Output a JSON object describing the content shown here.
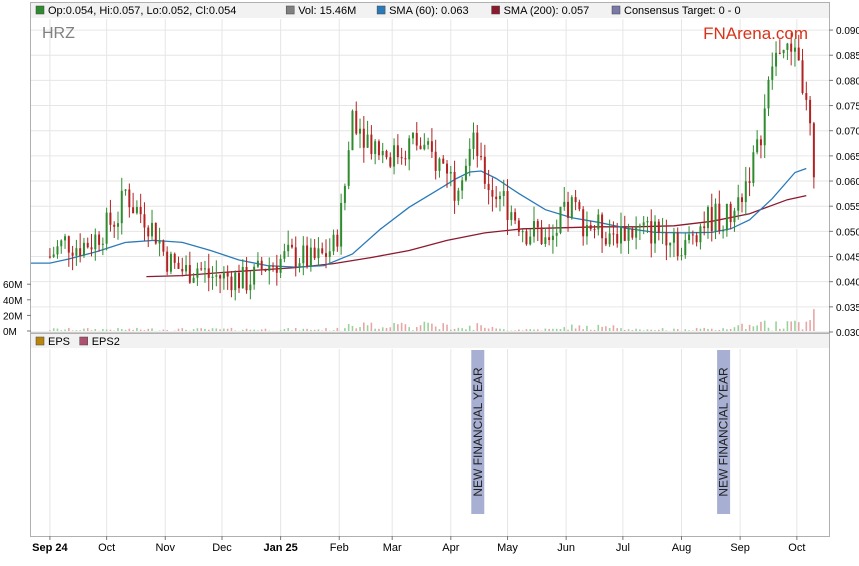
{
  "ticker": "HRZ",
  "brand": "FNArena.com",
  "legend_top": [
    {
      "label": "Op:0.054, Hi:0.057, Lo:0.052, Cl:0.054",
      "color": "#2e8b2e"
    },
    {
      "label": "Vol: 15.46M",
      "color": "#808080"
    },
    {
      "label": "SMA (60): 0.063",
      "color": "#2a7ab8"
    },
    {
      "label": "SMA (200): 0.057",
      "color": "#8b1a2e"
    },
    {
      "label": "Consensus Target: 0 - 0",
      "color": "#7a7aa8"
    }
  ],
  "legend_bottom": [
    {
      "label": "EPS",
      "color": "#b8860b"
    },
    {
      "label": "EPS2",
      "color": "#b05070"
    }
  ],
  "annotations": [
    "NEW FINANCIAL YEAR",
    "NEW FINANCIAL YEAR"
  ],
  "chart_data": {
    "type": "candlestick",
    "price_axis": {
      "ticks": [
        "0.090",
        "0.085",
        "0.080",
        "0.075",
        "0.070",
        "0.065",
        "0.060",
        "0.055",
        "0.050",
        "0.045",
        "0.040",
        "0.035",
        "0.030"
      ],
      "min": 0.03,
      "max": 0.092
    },
    "volume_axis": {
      "ticks": [
        "60M",
        "40M",
        "20M",
        "0M"
      ],
      "max": 75
    },
    "x_axis": {
      "labels": [
        "Sep 24",
        "Oct",
        "Nov",
        "Dec",
        "Jan 25",
        "Feb",
        "Mar",
        "Apr",
        "May",
        "Jun",
        "Jul",
        "Aug",
        "Sep",
        "Oct"
      ],
      "bold": [
        "Sep 24",
        "Jan 25"
      ],
      "min_day": -10,
      "max_day": 412,
      "label_days": [
        0,
        30,
        61,
        91,
        122,
        153,
        181,
        212,
        242,
        273,
        303,
        334,
        365,
        395
      ],
      "annotation_days": [
        226,
        356
      ]
    },
    "price_anchors": [
      [
        0,
        0.045
      ],
      [
        8,
        0.048
      ],
      [
        15,
        0.047
      ],
      [
        22,
        0.048
      ],
      [
        30,
        0.051
      ],
      [
        36,
        0.053
      ],
      [
        40,
        0.058
      ],
      [
        44,
        0.055
      ],
      [
        50,
        0.053
      ],
      [
        57,
        0.049
      ],
      [
        61,
        0.045
      ],
      [
        66,
        0.043
      ],
      [
        72,
        0.042
      ],
      [
        78,
        0.043
      ],
      [
        84,
        0.041
      ],
      [
        91,
        0.041
      ],
      [
        97,
        0.041
      ],
      [
        103,
        0.04
      ],
      [
        108,
        0.041
      ],
      [
        113,
        0.043
      ],
      [
        120,
        0.044
      ],
      [
        126,
        0.045
      ],
      [
        132,
        0.045
      ],
      [
        138,
        0.044
      ],
      [
        144,
        0.045
      ],
      [
        150,
        0.047
      ],
      [
        153,
        0.051
      ],
      [
        157,
        0.062
      ],
      [
        160,
        0.074
      ],
      [
        165,
        0.07
      ],
      [
        170,
        0.068
      ],
      [
        176,
        0.066
      ],
      [
        181,
        0.065
      ],
      [
        186,
        0.066
      ],
      [
        192,
        0.068
      ],
      [
        198,
        0.066
      ],
      [
        204,
        0.064
      ],
      [
        210,
        0.063
      ],
      [
        214,
        0.059
      ],
      [
        218,
        0.063
      ],
      [
        222,
        0.066
      ],
      [
        225,
        0.068
      ],
      [
        228,
        0.062
      ],
      [
        234,
        0.058
      ],
      [
        240,
        0.056
      ],
      [
        246,
        0.053
      ],
      [
        252,
        0.05
      ],
      [
        258,
        0.05
      ],
      [
        264,
        0.047
      ],
      [
        270,
        0.052
      ],
      [
        276,
        0.055
      ],
      [
        282,
        0.052
      ],
      [
        288,
        0.051
      ],
      [
        294,
        0.05
      ],
      [
        300,
        0.05
      ],
      [
        306,
        0.05
      ],
      [
        312,
        0.05
      ],
      [
        318,
        0.05
      ],
      [
        324,
        0.05
      ],
      [
        330,
        0.05
      ],
      [
        334,
        0.045
      ],
      [
        340,
        0.05
      ],
      [
        346,
        0.052
      ],
      [
        352,
        0.053
      ],
      [
        356,
        0.052
      ],
      [
        362,
        0.054
      ],
      [
        368,
        0.06
      ],
      [
        374,
        0.066
      ],
      [
        378,
        0.074
      ],
      [
        382,
        0.083
      ],
      [
        386,
        0.087
      ],
      [
        390,
        0.085
      ],
      [
        394,
        0.088
      ],
      [
        398,
        0.079
      ],
      [
        402,
        0.07
      ],
      [
        405,
        0.052
      ]
    ],
    "sma60": [
      [
        -10,
        0.0437
      ],
      [
        0,
        0.0437
      ],
      [
        10,
        0.0445
      ],
      [
        25,
        0.046
      ],
      [
        40,
        0.0478
      ],
      [
        55,
        0.0482
      ],
      [
        70,
        0.0478
      ],
      [
        85,
        0.0462
      ],
      [
        100,
        0.0443
      ],
      [
        115,
        0.0432
      ],
      [
        130,
        0.0429
      ],
      [
        145,
        0.0432
      ],
      [
        160,
        0.0455
      ],
      [
        175,
        0.0505
      ],
      [
        190,
        0.0548
      ],
      [
        205,
        0.0582
      ],
      [
        215,
        0.0605
      ],
      [
        222,
        0.0618
      ],
      [
        228,
        0.062
      ],
      [
        236,
        0.0605
      ],
      [
        248,
        0.0575
      ],
      [
        262,
        0.0543
      ],
      [
        276,
        0.0527
      ],
      [
        290,
        0.0518
      ],
      [
        305,
        0.0506
      ],
      [
        320,
        0.0498
      ],
      [
        335,
        0.0497
      ],
      [
        350,
        0.0498
      ],
      [
        360,
        0.0505
      ],
      [
        370,
        0.0523
      ],
      [
        382,
        0.0565
      ],
      [
        394,
        0.0617
      ],
      [
        400,
        0.0625
      ]
    ],
    "sma200": [
      [
        51,
        0.041
      ],
      [
        70,
        0.0412
      ],
      [
        90,
        0.0418
      ],
      [
        110,
        0.0423
      ],
      [
        130,
        0.0428
      ],
      [
        150,
        0.0436
      ],
      [
        170,
        0.0448
      ],
      [
        190,
        0.0462
      ],
      [
        210,
        0.0482
      ],
      [
        230,
        0.0497
      ],
      [
        250,
        0.0505
      ],
      [
        270,
        0.0507
      ],
      [
        290,
        0.0509
      ],
      [
        310,
        0.0509
      ],
      [
        330,
        0.0511
      ],
      [
        350,
        0.052
      ],
      [
        370,
        0.0535
      ],
      [
        390,
        0.0563
      ],
      [
        400,
        0.0571
      ]
    ]
  }
}
